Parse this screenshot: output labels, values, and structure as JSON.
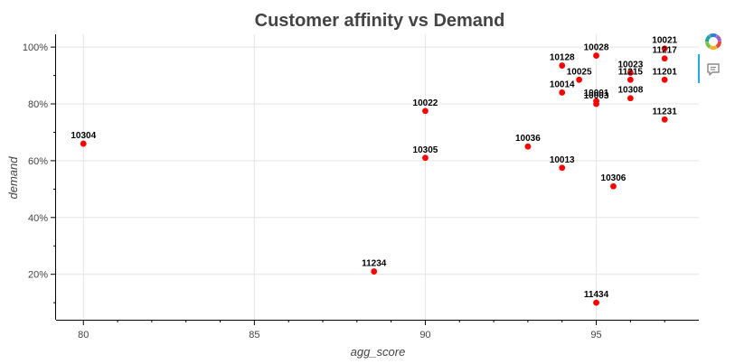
{
  "chart_data": {
    "type": "scatter",
    "title": "Customer affinity vs Demand",
    "xlabel": "agg_score",
    "ylabel": "demand",
    "xlim": [
      79.2,
      98.0
    ],
    "ylim": [
      0.04,
      1.045
    ],
    "x_ticks": [
      80,
      85,
      90,
      95
    ],
    "x_tick_labels": [
      "80",
      "85",
      "90",
      "95"
    ],
    "y_ticks": [
      0.2,
      0.4,
      0.6,
      0.8,
      1.0
    ],
    "y_tick_labels": [
      "20%",
      "40%",
      "60%",
      "80%",
      "100%"
    ],
    "grid": true,
    "marker_color": "#ff0000",
    "points": [
      {
        "label": "10304",
        "x": 80.0,
        "y": 0.66
      },
      {
        "label": "10022",
        "x": 90.0,
        "y": 0.775
      },
      {
        "label": "10305",
        "x": 90.0,
        "y": 0.61
      },
      {
        "label": "11234",
        "x": 88.5,
        "y": 0.21
      },
      {
        "label": "10036",
        "x": 93.0,
        "y": 0.65
      },
      {
        "label": "10013",
        "x": 94.0,
        "y": 0.575
      },
      {
        "label": "10014",
        "x": 94.0,
        "y": 0.84
      },
      {
        "label": "10128",
        "x": 94.0,
        "y": 0.935
      },
      {
        "label": "10025",
        "x": 94.5,
        "y": 0.885
      },
      {
        "label": "10028",
        "x": 95.0,
        "y": 0.97
      },
      {
        "label": "10001",
        "x": 95.0,
        "y": 0.81
      },
      {
        "label": "10003",
        "x": 95.0,
        "y": 0.8
      },
      {
        "label": "11434",
        "x": 95.0,
        "y": 0.1
      },
      {
        "label": "10306",
        "x": 95.5,
        "y": 0.51
      },
      {
        "label": "10023",
        "x": 96.0,
        "y": 0.91
      },
      {
        "label": "11215",
        "x": 96.0,
        "y": 0.885
      },
      {
        "label": "10308",
        "x": 96.0,
        "y": 0.82
      },
      {
        "label": "10021",
        "x": 97.0,
        "y": 0.995
      },
      {
        "label": "11217",
        "x": 97.0,
        "y": 0.96
      },
      {
        "label": "11201",
        "x": 97.0,
        "y": 0.885
      },
      {
        "label": "11231",
        "x": 97.0,
        "y": 0.745
      }
    ]
  },
  "toolbar": {
    "logo_icon": "bokeh-logo-icon",
    "hover_icon": "hover-tool-icon",
    "accent_color": "#26aae1"
  }
}
